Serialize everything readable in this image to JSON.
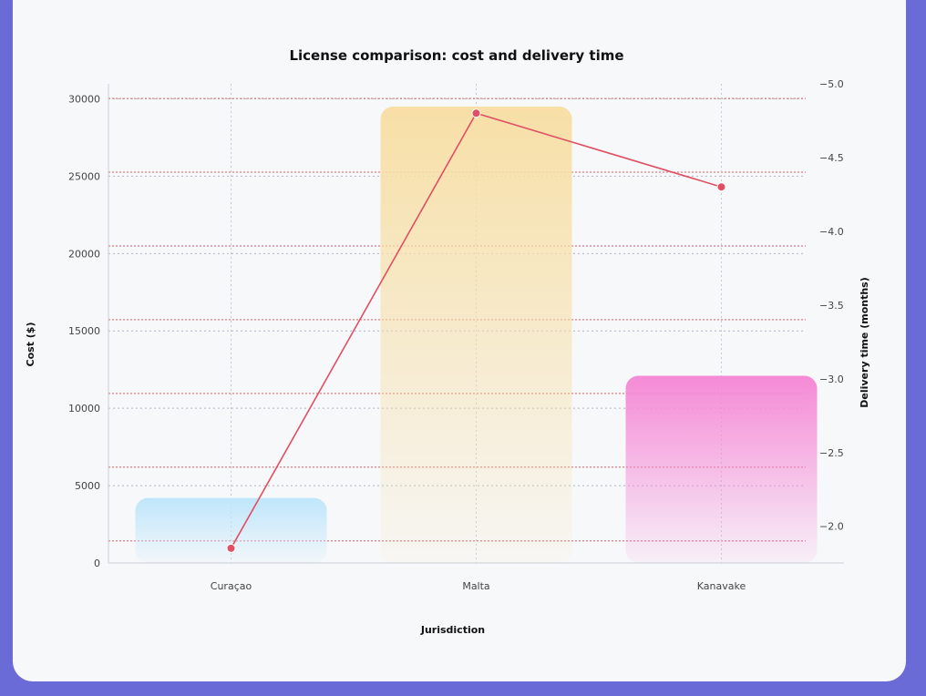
{
  "chart_data": {
    "type": "bar",
    "title": "License comparison: cost and delivery time",
    "xlabel": "Jurisdiction",
    "ylabel": "Cost ($)",
    "y2label": "Delivery time (months)",
    "categories": [
      "Curaçao",
      "Malta",
      "Kanavake"
    ],
    "ylim": [
      0,
      30500
    ],
    "y2lim": [
      -1.85,
      -5.05
    ],
    "yticks": [
      0,
      5000,
      10000,
      15000,
      20000,
      25000,
      30000
    ],
    "y2ticks": [
      -2.0,
      -2.5,
      -3.0,
      -3.5,
      -4.0,
      -4.5,
      -5.0
    ],
    "series": [
      {
        "type": "bar",
        "axis": "left",
        "values": [
          4200,
          29500,
          12100
        ],
        "colors": [
          "#bfe6fb",
          "#f7dfa6",
          "#f58ad6"
        ]
      },
      {
        "type": "line",
        "axis": "right",
        "values": [
          -1.95,
          -4.9,
          -4.4
        ],
        "color": "#e04f63"
      }
    ],
    "grid": true,
    "legend": "none"
  }
}
